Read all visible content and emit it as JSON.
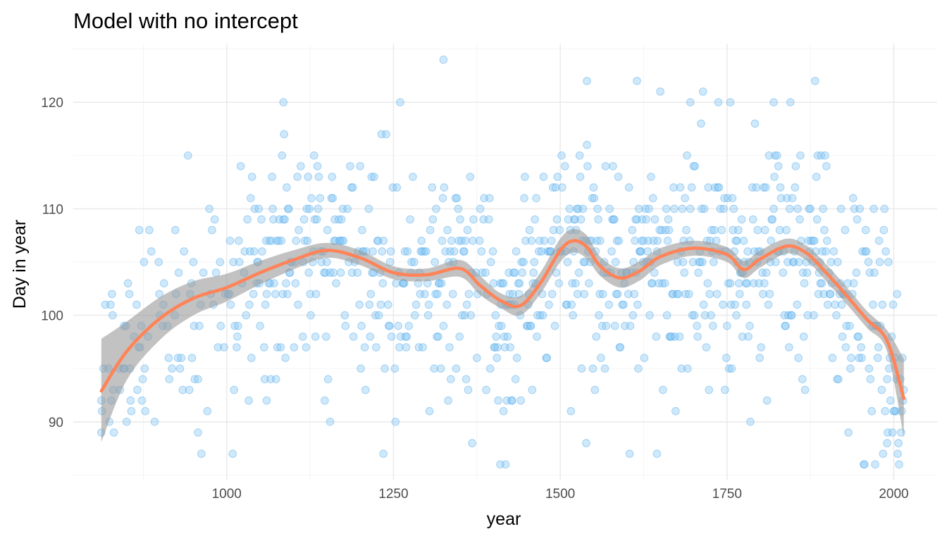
{
  "chart_data": {
    "type": "scatter",
    "title": "Model with no intercept",
    "xlabel": "year",
    "ylabel": "Day in year",
    "xlim": [
      770,
      2065
    ],
    "ylim": [
      84.5,
      125.5
    ],
    "x_ticks": [
      1000,
      1250,
      1500,
      1750,
      2000
    ],
    "x_minor_ticks": [
      875,
      1125,
      1375,
      1625,
      1875
    ],
    "y_ticks": [
      90,
      100,
      110,
      120
    ],
    "y_minor_ticks": [
      85,
      95,
      105,
      115,
      125
    ],
    "grid": true,
    "legend": "none",
    "colors": {
      "points": "#80c4f5",
      "trend": "#ff8358",
      "band": "#999999",
      "grid": "#ebebeb"
    },
    "smooth": {
      "x": [
        812,
        850,
        900,
        950,
        1000,
        1050,
        1100,
        1150,
        1200,
        1250,
        1300,
        1350,
        1380,
        1410,
        1440,
        1470,
        1500,
        1520,
        1540,
        1560,
        1590,
        1620,
        1650,
        1700,
        1750,
        1775,
        1800,
        1840,
        1870,
        1900,
        1930,
        1960,
        1990,
        2015
      ],
      "y": [
        92.9,
        96.6,
        99.7,
        101.6,
        102.6,
        104.0,
        105.2,
        106.1,
        105.4,
        104.0,
        103.8,
        104.4,
        102.8,
        101.4,
        100.9,
        103.0,
        106.1,
        107.0,
        106.4,
        104.6,
        103.5,
        104.2,
        105.5,
        106.3,
        105.7,
        104.3,
        105.3,
        106.5,
        105.8,
        103.9,
        101.8,
        99.6,
        97.6,
        92.2
      ],
      "lower": [
        88.1,
        93.9,
        97.7,
        100.0,
        101.3,
        102.9,
        104.3,
        105.4,
        104.7,
        103.4,
        103.2,
        103.6,
        101.9,
        100.7,
        100.0,
        102.0,
        105.0,
        105.9,
        105.3,
        103.7,
        102.6,
        103.3,
        104.7,
        105.6,
        105.0,
        103.5,
        104.5,
        105.8,
        105.1,
        103.1,
        101.0,
        98.8,
        96.6,
        88.5
      ],
      "upper": [
        97.8,
        99.4,
        101.7,
        103.2,
        103.9,
        105.1,
        106.1,
        106.8,
        106.1,
        104.6,
        104.4,
        105.2,
        103.7,
        102.1,
        101.8,
        104.0,
        107.2,
        108.1,
        107.5,
        105.5,
        104.4,
        105.1,
        106.3,
        107.0,
        106.4,
        105.1,
        106.1,
        107.2,
        106.5,
        104.7,
        102.6,
        100.4,
        98.6,
        95.9
      ]
    }
  }
}
